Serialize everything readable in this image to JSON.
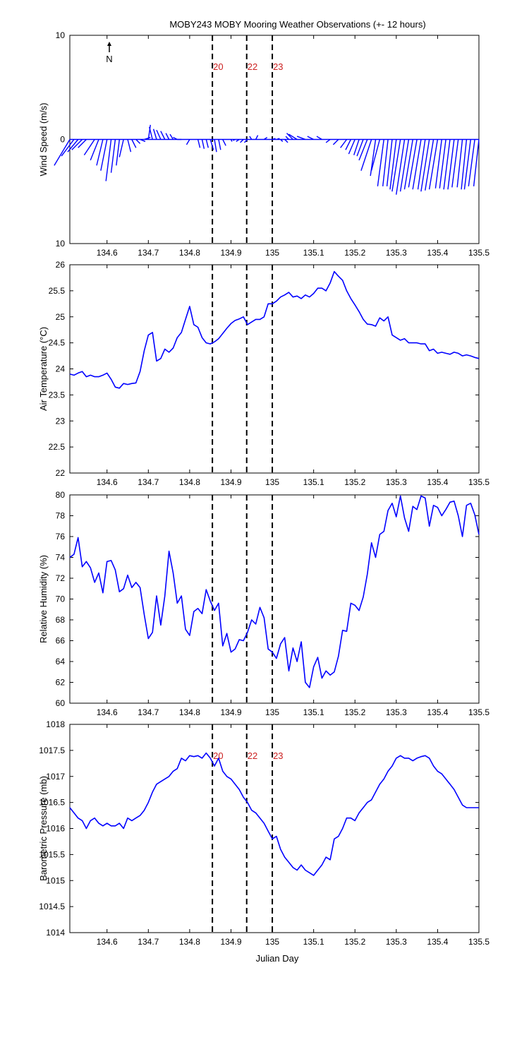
{
  "title": "MOBY243 MOBY Mooring Weather Observations (+- 12 hours)",
  "north_label": "N",
  "x_axis": {
    "label": "Julian Day",
    "range": [
      134.51,
      135.5
    ],
    "ticks": [
      134.6,
      134.7,
      134.8,
      134.9,
      135,
      135.1,
      135.2,
      135.3,
      135.4,
      135.5
    ],
    "tick_labels": [
      "134.6",
      "134.7",
      "134.8",
      "134.9",
      "135",
      "135.1",
      "135.2",
      "135.3",
      "135.4",
      "135.5"
    ]
  },
  "markers": [
    {
      "x": 134.855,
      "label": "20"
    },
    {
      "x": 134.938,
      "label": "22"
    },
    {
      "x": 135.0,
      "label": "23"
    }
  ],
  "colors": {
    "series": "#0000ff",
    "marker": "#cc2222",
    "axis": "#000000",
    "background": "#ffffff"
  },
  "chart_data": [
    {
      "type": "line",
      "subtype": "wind-vector (stick) plot",
      "ylabel": "Wind Speed (m/s)",
      "ylim": [
        -10,
        10
      ],
      "yticks": [
        -10,
        0,
        10
      ],
      "ytick_labels": [
        "10",
        "0",
        "10"
      ],
      "show_markers": true,
      "marker_labels_shown": true,
      "sticks": {
        "x": [
          134.51,
          134.52,
          134.53,
          134.54,
          134.55,
          134.57,
          134.58,
          134.59,
          134.6,
          134.61,
          134.62,
          134.63,
          134.64,
          134.65,
          134.66,
          134.67,
          134.68,
          134.69,
          134.7,
          134.71,
          134.72,
          134.73,
          134.74,
          134.75,
          134.76,
          134.77,
          134.78,
          134.8,
          134.82,
          134.83,
          134.84,
          134.85,
          134.86,
          134.87,
          134.88,
          134.9,
          134.91,
          134.92,
          134.93,
          134.94,
          134.95,
          134.96,
          134.98,
          135.0,
          135.01,
          135.02,
          135.03,
          135.04,
          135.05,
          135.06,
          135.08,
          135.1,
          135.12,
          135.14,
          135.16,
          135.18,
          135.19,
          135.2,
          135.21,
          135.22,
          135.23,
          135.24,
          135.25,
          135.26,
          135.27,
          135.28,
          135.29,
          135.3,
          135.31,
          135.32,
          135.33,
          135.34,
          135.35,
          135.36,
          135.37,
          135.38,
          135.39,
          135.4,
          135.41,
          135.42,
          135.43,
          135.44,
          135.45,
          135.46,
          135.47,
          135.48,
          135.49,
          135.5
        ],
        "u": [
          -1.5,
          -1.2,
          -1.0,
          -1.0,
          -0.8,
          -1.0,
          -0.8,
          -0.6,
          -0.6,
          -0.5,
          -0.4,
          -0.3,
          -0.4,
          0.3,
          0.4,
          0.4,
          0.5,
          0.6,
          0.2,
          -0.3,
          -0.3,
          -0.4,
          -0.4,
          -0.3,
          -0.3,
          -0.4,
          -0.4,
          -0.3,
          0.2,
          0.2,
          0.2,
          0.3,
          0.2,
          0.2,
          0.3,
          0.1,
          -0.2,
          -0.3,
          -0.3,
          -0.3,
          -0.2,
          0.2,
          0.3,
          0.3,
          0.3,
          0.2,
          0.3,
          -0.3,
          -0.6,
          -0.8,
          -0.8,
          -0.6,
          -0.5,
          -0.4,
          -0.5,
          -0.6,
          -0.5,
          -0.6,
          -0.5,
          -0.6,
          -0.8,
          -1.0,
          -0.5,
          -0.8,
          -0.6,
          -0.5,
          -0.5,
          -0.6,
          -0.8,
          -0.8,
          -0.8,
          -0.8,
          -0.8,
          -0.8,
          -0.7,
          -0.8,
          -0.8,
          -0.8,
          -0.6,
          -0.6,
          -0.6,
          -0.6,
          -0.6,
          -0.5,
          -0.5,
          -0.6,
          -0.6,
          -0.5
        ],
        "v": [
          -2.5,
          -1.6,
          -1.2,
          -1.0,
          -0.8,
          -1.5,
          -2.0,
          -2.5,
          -3.0,
          -4.0,
          -3.2,
          -2.5,
          -1.7,
          -1.2,
          -0.8,
          -0.4,
          -0.2,
          0.2,
          1.4,
          1.2,
          1.0,
          0.9,
          0.8,
          0.6,
          0.5,
          0.2,
          0.0,
          -0.5,
          -0.8,
          -0.9,
          -0.8,
          -1.0,
          -1.2,
          -1.0,
          -0.6,
          -0.2,
          -0.1,
          -0.2,
          -0.3,
          -0.3,
          0.3,
          0.4,
          0.2,
          0.1,
          0.1,
          -0.2,
          -0.3,
          0.3,
          0.6,
          0.5,
          0.3,
          0.3,
          0.3,
          -0.3,
          -0.5,
          -0.8,
          -1.0,
          -1.4,
          -1.5,
          -1.6,
          -2.0,
          -3.0,
          -3.5,
          -3.0,
          -4.5,
          -4.5,
          -4.5,
          -4.8,
          -5.0,
          -5.3,
          -5.0,
          -4.8,
          -4.6,
          -4.8,
          -4.8,
          -5.0,
          -4.9,
          -4.8,
          -4.7,
          -4.7,
          -4.8,
          -4.8,
          -4.6,
          -4.6,
          -4.8,
          -4.8,
          -4.5,
          -4.5
        ]
      }
    },
    {
      "type": "line",
      "ylabel": "Air Temperature (°C)",
      "ylim": [
        22,
        26
      ],
      "yticks": [
        22,
        22.5,
        23,
        23.5,
        24,
        24.5,
        25,
        25.5,
        26
      ],
      "ytick_labels": [
        "22",
        "22.5",
        "23",
        "23.5",
        "24",
        "24.5",
        "25",
        "25.5",
        "26"
      ],
      "show_markers": true,
      "marker_labels_shown": false,
      "series": [
        {
          "x": [
            134.51,
            134.52,
            134.53,
            134.54,
            134.55,
            134.56,
            134.57,
            134.58,
            134.59,
            134.6,
            134.61,
            134.62,
            134.63,
            134.64,
            134.65,
            134.66,
            134.67,
            134.68,
            134.69,
            134.7,
            134.71,
            134.72,
            134.73,
            134.74,
            134.75,
            134.76,
            134.77,
            134.78,
            134.79,
            134.8,
            134.81,
            134.82,
            134.83,
            134.84,
            134.85,
            134.86,
            134.87,
            134.88,
            134.89,
            134.9,
            134.91,
            134.92,
            134.93,
            134.94,
            134.95,
            134.96,
            134.97,
            134.98,
            134.99,
            135.0,
            135.01,
            135.02,
            135.03,
            135.04,
            135.05,
            135.06,
            135.07,
            135.08,
            135.09,
            135.1,
            135.11,
            135.12,
            135.13,
            135.14,
            135.15,
            135.16,
            135.17,
            135.18,
            135.19,
            135.2,
            135.21,
            135.22,
            135.23,
            135.24,
            135.25,
            135.26,
            135.27,
            135.28,
            135.29,
            135.3,
            135.31,
            135.32,
            135.33,
            135.34,
            135.35,
            135.36,
            135.37,
            135.38,
            135.39,
            135.4,
            135.41,
            135.42,
            135.43,
            135.44,
            135.45,
            135.46,
            135.47,
            135.48,
            135.49,
            135.5
          ],
          "y": [
            23.9,
            23.88,
            23.92,
            23.95,
            23.85,
            23.88,
            23.85,
            23.85,
            23.88,
            23.92,
            23.8,
            23.65,
            23.63,
            23.72,
            23.7,
            23.72,
            23.73,
            23.95,
            24.35,
            24.65,
            24.7,
            24.15,
            24.2,
            24.38,
            24.32,
            24.4,
            24.6,
            24.7,
            24.95,
            25.2,
            24.85,
            24.8,
            24.6,
            24.5,
            24.48,
            24.52,
            24.58,
            24.68,
            24.78,
            24.87,
            24.93,
            24.96,
            25.0,
            24.85,
            24.9,
            24.95,
            24.95,
            25.0,
            25.25,
            25.25,
            25.3,
            25.38,
            25.42,
            25.47,
            25.38,
            25.4,
            25.35,
            25.42,
            25.38,
            25.45,
            25.55,
            25.55,
            25.5,
            25.65,
            25.87,
            25.78,
            25.7,
            25.5,
            25.35,
            25.23,
            25.1,
            24.95,
            24.86,
            24.85,
            24.82,
            24.98,
            24.92,
            25.0,
            24.65,
            24.6,
            24.55,
            24.58,
            24.5,
            24.5,
            24.5,
            24.48,
            24.48,
            24.35,
            24.38,
            24.3,
            24.32,
            24.3,
            24.28,
            24.32,
            24.3,
            24.25,
            24.27,
            24.25,
            24.22,
            24.2
          ]
        }
      ]
    },
    {
      "type": "line",
      "ylabel": "Relative Humidity (%)",
      "ylim": [
        60,
        80
      ],
      "yticks": [
        60,
        62,
        64,
        66,
        68,
        70,
        72,
        74,
        76,
        78,
        80
      ],
      "ytick_labels": [
        "60",
        "62",
        "64",
        "66",
        "68",
        "70",
        "72",
        "74",
        "76",
        "78",
        "80"
      ],
      "show_markers": true,
      "marker_labels_shown": false,
      "series": [
        {
          "x": [
            134.51,
            134.52,
            134.53,
            134.54,
            134.55,
            134.56,
            134.57,
            134.58,
            134.59,
            134.6,
            134.61,
            134.62,
            134.63,
            134.64,
            134.65,
            134.66,
            134.67,
            134.68,
            134.69,
            134.7,
            134.71,
            134.72,
            134.73,
            134.74,
            134.75,
            134.76,
            134.77,
            134.78,
            134.79,
            134.8,
            134.81,
            134.82,
            134.83,
            134.84,
            134.85,
            134.86,
            134.87,
            134.88,
            134.89,
            134.9,
            134.91,
            134.92,
            134.93,
            134.94,
            134.95,
            134.96,
            134.97,
            134.98,
            134.99,
            135.0,
            135.01,
            135.02,
            135.03,
            135.04,
            135.05,
            135.06,
            135.07,
            135.08,
            135.09,
            135.1,
            135.11,
            135.12,
            135.13,
            135.14,
            135.15,
            135.16,
            135.17,
            135.18,
            135.19,
            135.2,
            135.21,
            135.22,
            135.23,
            135.24,
            135.25,
            135.26,
            135.27,
            135.28,
            135.29,
            135.3,
            135.31,
            135.32,
            135.33,
            135.34,
            135.35,
            135.36,
            135.37,
            135.38,
            135.39,
            135.4,
            135.41,
            135.42,
            135.43,
            135.44,
            135.45,
            135.46,
            135.47,
            135.48,
            135.49,
            135.5
          ],
          "y": [
            74.0,
            74.3,
            75.9,
            73.1,
            73.6,
            73.0,
            71.6,
            72.5,
            70.6,
            73.6,
            73.7,
            72.8,
            70.7,
            71.0,
            72.3,
            71.1,
            71.6,
            71.1,
            68.5,
            66.2,
            66.8,
            70.3,
            67.5,
            70.3,
            74.6,
            72.5,
            69.6,
            70.3,
            67.1,
            66.5,
            68.8,
            69.1,
            68.6,
            70.9,
            69.8,
            68.9,
            69.6,
            65.5,
            66.7,
            64.9,
            65.2,
            66.1,
            66.0,
            66.8,
            68.0,
            67.6,
            69.2,
            68.2,
            65.2,
            64.9,
            64.3,
            65.7,
            66.3,
            63.1,
            65.3,
            64.0,
            65.9,
            62.0,
            61.5,
            63.5,
            64.4,
            62.4,
            63.1,
            62.7,
            63.0,
            64.5,
            67.0,
            66.9,
            69.6,
            69.4,
            68.9,
            70.2,
            72.4,
            75.4,
            74.0,
            76.2,
            76.5,
            78.5,
            79.2,
            77.9,
            79.9,
            77.8,
            76.5,
            78.9,
            78.6,
            79.9,
            79.7,
            77.0,
            79.0,
            78.8,
            78.0,
            78.6,
            79.3,
            79.4,
            78.0,
            76.0,
            79.0,
            79.2,
            78.1,
            76.2
          ]
        }
      ]
    },
    {
      "type": "line",
      "ylabel": "Barometric Pressure (mb)",
      "xlabel": "Julian Day",
      "ylim": [
        1014,
        1018
      ],
      "yticks": [
        1014,
        1014.5,
        1015,
        1015.5,
        1016,
        1016.5,
        1017,
        1017.5,
        1018
      ],
      "ytick_labels": [
        "1014",
        "1014.5",
        "1015",
        "1015.5",
        "1016",
        "1016.5",
        "1017",
        "1017.5",
        "1018"
      ],
      "show_markers": true,
      "marker_labels_shown": true,
      "series": [
        {
          "x": [
            134.51,
            134.52,
            134.53,
            134.54,
            134.55,
            134.56,
            134.57,
            134.58,
            134.59,
            134.6,
            134.61,
            134.62,
            134.63,
            134.64,
            134.65,
            134.66,
            134.67,
            134.68,
            134.69,
            134.7,
            134.71,
            134.72,
            134.73,
            134.74,
            134.75,
            134.76,
            134.77,
            134.78,
            134.79,
            134.8,
            134.81,
            134.82,
            134.83,
            134.84,
            134.85,
            134.86,
            134.87,
            134.88,
            134.89,
            134.9,
            134.91,
            134.92,
            134.93,
            134.94,
            134.95,
            134.96,
            134.97,
            134.98,
            134.99,
            135.0,
            135.01,
            135.02,
            135.03,
            135.04,
            135.05,
            135.06,
            135.07,
            135.08,
            135.09,
            135.1,
            135.11,
            135.12,
            135.13,
            135.14,
            135.15,
            135.16,
            135.17,
            135.18,
            135.19,
            135.2,
            135.21,
            135.22,
            135.23,
            135.24,
            135.25,
            135.26,
            135.27,
            135.28,
            135.29,
            135.3,
            135.31,
            135.32,
            135.33,
            135.34,
            135.35,
            135.36,
            135.37,
            135.38,
            135.39,
            135.4,
            135.41,
            135.42,
            135.43,
            135.44,
            135.45,
            135.46,
            135.47,
            135.48,
            135.49,
            135.5
          ],
          "y": [
            1016.4,
            1016.3,
            1016.2,
            1016.15,
            1016.0,
            1016.15,
            1016.2,
            1016.1,
            1016.05,
            1016.1,
            1016.05,
            1016.05,
            1016.1,
            1016.0,
            1016.2,
            1016.15,
            1016.2,
            1016.25,
            1016.35,
            1016.5,
            1016.7,
            1016.85,
            1016.9,
            1016.95,
            1017.0,
            1017.1,
            1017.15,
            1017.35,
            1017.3,
            1017.4,
            1017.38,
            1017.4,
            1017.35,
            1017.45,
            1017.35,
            1017.2,
            1017.35,
            1017.1,
            1017.0,
            1016.95,
            1016.85,
            1016.75,
            1016.6,
            1016.5,
            1016.35,
            1016.3,
            1016.2,
            1016.1,
            1015.95,
            1015.8,
            1015.85,
            1015.6,
            1015.45,
            1015.35,
            1015.25,
            1015.2,
            1015.3,
            1015.2,
            1015.15,
            1015.1,
            1015.2,
            1015.3,
            1015.45,
            1015.4,
            1015.8,
            1015.85,
            1016.0,
            1016.2,
            1016.2,
            1016.15,
            1016.3,
            1016.4,
            1016.5,
            1016.55,
            1016.7,
            1016.85,
            1016.95,
            1017.1,
            1017.2,
            1017.35,
            1017.4,
            1017.35,
            1017.35,
            1017.3,
            1017.35,
            1017.38,
            1017.4,
            1017.35,
            1017.2,
            1017.1,
            1017.05,
            1016.95,
            1016.85,
            1016.75,
            1016.6,
            1016.45,
            1016.4,
            1016.4,
            1016.4,
            1016.4
          ]
        }
      ]
    }
  ]
}
